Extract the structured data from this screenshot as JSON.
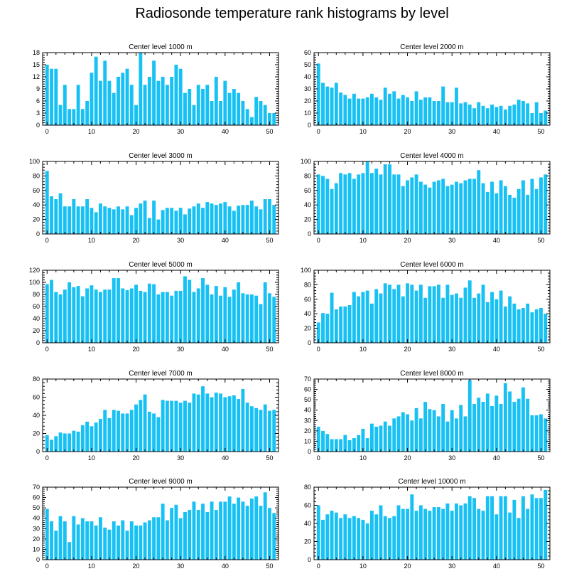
{
  "page_title": "Radiosonde temperature rank histograms by level",
  "colors": {
    "bar": "#18c1f4",
    "axis": "#000000",
    "background": "#ffffff"
  },
  "chart_data": [
    {
      "type": "bar",
      "title": "Center level 1000 m",
      "xlim": [
        -1,
        52
      ],
      "ylim": [
        0,
        18
      ],
      "xticks": [
        0,
        10,
        20,
        30,
        40,
        50
      ],
      "yticks": [
        0,
        3,
        6,
        9,
        12,
        15,
        18
      ],
      "x": [
        0,
        1,
        2,
        3,
        4,
        5,
        6,
        7,
        8,
        9,
        10,
        11,
        12,
        13,
        14,
        15,
        16,
        17,
        18,
        19,
        20,
        21,
        22,
        23,
        24,
        25,
        26,
        27,
        28,
        29,
        30,
        31,
        32,
        33,
        34,
        35,
        36,
        37,
        38,
        39,
        40,
        41,
        42,
        43,
        44,
        45,
        46,
        47,
        48,
        49,
        50,
        51
      ],
      "values": [
        15,
        14,
        14,
        5,
        10,
        4,
        4,
        10,
        4,
        6,
        13,
        17,
        11,
        16,
        11,
        8,
        12,
        13,
        14,
        10,
        5,
        18,
        10,
        12,
        16,
        11,
        12,
        10,
        12,
        15,
        14,
        8,
        9,
        5,
        10,
        9,
        10,
        6,
        12,
        6,
        11,
        8,
        9,
        8,
        6,
        4,
        2,
        7,
        6,
        5,
        3,
        3
      ]
    },
    {
      "type": "bar",
      "title": "Center level 2000 m",
      "xlim": [
        -1,
        52
      ],
      "ylim": [
        0,
        60
      ],
      "xticks": [
        0,
        10,
        20,
        30,
        40,
        50
      ],
      "yticks": [
        0,
        10,
        20,
        30,
        40,
        50,
        60
      ],
      "x": [
        0,
        1,
        2,
        3,
        4,
        5,
        6,
        7,
        8,
        9,
        10,
        11,
        12,
        13,
        14,
        15,
        16,
        17,
        18,
        19,
        20,
        21,
        22,
        23,
        24,
        25,
        26,
        27,
        28,
        29,
        30,
        31,
        32,
        33,
        34,
        35,
        36,
        37,
        38,
        39,
        40,
        41,
        42,
        43,
        44,
        45,
        46,
        47,
        48,
        49,
        50,
        51
      ],
      "values": [
        51,
        35,
        32,
        31,
        35,
        27,
        25,
        22,
        26,
        22,
        22,
        23,
        26,
        23,
        21,
        31,
        26,
        28,
        22,
        25,
        23,
        20,
        28,
        21,
        23,
        23,
        20,
        20,
        32,
        19,
        19,
        31,
        18,
        19,
        17,
        14,
        19,
        16,
        14,
        17,
        15,
        16,
        13,
        16,
        17,
        21,
        20,
        18,
        10,
        19,
        10,
        12
      ]
    },
    {
      "type": "bar",
      "title": "Center level 3000 m",
      "xlim": [
        -1,
        52
      ],
      "ylim": [
        0,
        100
      ],
      "xticks": [
        0,
        10,
        20,
        30,
        40,
        50
      ],
      "yticks": [
        0,
        20,
        40,
        60,
        80,
        100
      ],
      "x": [
        0,
        1,
        2,
        3,
        4,
        5,
        6,
        7,
        8,
        9,
        10,
        11,
        12,
        13,
        14,
        15,
        16,
        17,
        18,
        19,
        20,
        21,
        22,
        23,
        24,
        25,
        26,
        27,
        28,
        29,
        30,
        31,
        32,
        33,
        34,
        35,
        36,
        37,
        38,
        39,
        40,
        41,
        42,
        43,
        44,
        45,
        46,
        47,
        48,
        49,
        50,
        51
      ],
      "values": [
        87,
        52,
        48,
        56,
        38,
        38,
        48,
        38,
        38,
        48,
        36,
        30,
        42,
        38,
        36,
        34,
        38,
        34,
        38,
        26,
        36,
        42,
        46,
        22,
        46,
        20,
        33,
        36,
        36,
        32,
        36,
        27,
        35,
        38,
        42,
        36,
        44,
        42,
        40,
        42,
        44,
        38,
        32,
        39,
        40,
        40,
        46,
        38,
        34,
        48,
        48,
        40
      ]
    },
    {
      "type": "bar",
      "title": "Center level 4000 m",
      "xlim": [
        -1,
        52
      ],
      "ylim": [
        0,
        100
      ],
      "xticks": [
        0,
        10,
        20,
        30,
        40,
        50
      ],
      "yticks": [
        0,
        20,
        40,
        60,
        80,
        100
      ],
      "x": [
        0,
        1,
        2,
        3,
        4,
        5,
        6,
        7,
        8,
        9,
        10,
        11,
        12,
        13,
        14,
        15,
        16,
        17,
        18,
        19,
        20,
        21,
        22,
        23,
        24,
        25,
        26,
        27,
        28,
        29,
        30,
        31,
        32,
        33,
        34,
        35,
        36,
        37,
        38,
        39,
        40,
        41,
        42,
        43,
        44,
        45,
        46,
        47,
        48,
        49,
        50,
        51
      ],
      "values": [
        82,
        80,
        76,
        62,
        70,
        84,
        82,
        84,
        76,
        82,
        84,
        100,
        84,
        90,
        82,
        96,
        96,
        82,
        82,
        66,
        74,
        78,
        82,
        72,
        68,
        64,
        72,
        74,
        76,
        66,
        68,
        72,
        70,
        74,
        76,
        76,
        88,
        70,
        58,
        72,
        56,
        74,
        66,
        54,
        50,
        62,
        74,
        54,
        76,
        62,
        78,
        82
      ]
    },
    {
      "type": "bar",
      "title": "Center level 5000 m",
      "xlim": [
        -1,
        52
      ],
      "ylim": [
        0,
        120
      ],
      "xticks": [
        0,
        10,
        20,
        30,
        40,
        50
      ],
      "yticks": [
        0,
        20,
        40,
        60,
        80,
        100,
        120
      ],
      "x": [
        0,
        1,
        2,
        3,
        4,
        5,
        6,
        7,
        8,
        9,
        10,
        11,
        12,
        13,
        14,
        15,
        16,
        17,
        18,
        19,
        20,
        21,
        22,
        23,
        24,
        25,
        26,
        27,
        28,
        29,
        30,
        31,
        32,
        33,
        34,
        35,
        36,
        37,
        38,
        39,
        40,
        41,
        42,
        43,
        44,
        45,
        46,
        47,
        48,
        49,
        50,
        51
      ],
      "values": [
        97,
        104,
        84,
        80,
        88,
        100,
        92,
        94,
        77,
        90,
        95,
        88,
        84,
        88,
        88,
        107,
        107,
        90,
        87,
        90,
        96,
        86,
        84,
        98,
        97,
        80,
        84,
        84,
        78,
        86,
        86,
        110,
        104,
        84,
        90,
        107,
        96,
        80,
        94,
        78,
        92,
        76,
        88,
        100,
        82,
        80,
        80,
        78,
        64,
        100,
        82,
        76
      ]
    },
    {
      "type": "bar",
      "title": "Center level 6000 m",
      "xlim": [
        -1,
        52
      ],
      "ylim": [
        0,
        100
      ],
      "xticks": [
        0,
        10,
        20,
        30,
        40,
        50
      ],
      "yticks": [
        0,
        20,
        40,
        60,
        80,
        100
      ],
      "x": [
        0,
        1,
        2,
        3,
        4,
        5,
        6,
        7,
        8,
        9,
        10,
        11,
        12,
        13,
        14,
        15,
        16,
        17,
        18,
        19,
        20,
        21,
        22,
        23,
        24,
        25,
        26,
        27,
        28,
        29,
        30,
        31,
        32,
        33,
        34,
        35,
        36,
        37,
        38,
        39,
        40,
        41,
        42,
        43,
        44,
        45,
        46,
        47,
        48,
        49,
        50,
        51
      ],
      "values": [
        28,
        41,
        40,
        69,
        46,
        50,
        50,
        52,
        70,
        64,
        70,
        72,
        54,
        74,
        68,
        82,
        80,
        74,
        80,
        64,
        82,
        80,
        72,
        80,
        62,
        78,
        78,
        80,
        62,
        80,
        66,
        68,
        62,
        76,
        86,
        62,
        68,
        80,
        56,
        70,
        60,
        72,
        50,
        64,
        54,
        46,
        48,
        54,
        42,
        46,
        48,
        40
      ]
    },
    {
      "type": "bar",
      "title": "Center level 7000 m",
      "xlim": [
        -1,
        52
      ],
      "ylim": [
        0,
        80
      ],
      "xticks": [
        0,
        10,
        20,
        30,
        40,
        50
      ],
      "yticks": [
        0,
        20,
        40,
        60,
        80
      ],
      "x": [
        0,
        1,
        2,
        3,
        4,
        5,
        6,
        7,
        8,
        9,
        10,
        11,
        12,
        13,
        14,
        15,
        16,
        17,
        18,
        19,
        20,
        21,
        22,
        23,
        24,
        25,
        26,
        27,
        28,
        29,
        30,
        31,
        32,
        33,
        34,
        35,
        36,
        37,
        38,
        39,
        40,
        41,
        42,
        43,
        44,
        45,
        46,
        47,
        48,
        49,
        50,
        51
      ],
      "values": [
        18,
        13,
        17,
        21,
        20,
        20,
        23,
        22,
        29,
        33,
        28,
        32,
        36,
        46,
        37,
        46,
        45,
        42,
        42,
        46,
        52,
        57,
        63,
        44,
        42,
        38,
        57,
        56,
        56,
        56,
        54,
        56,
        54,
        64,
        63,
        72,
        64,
        60,
        65,
        64,
        60,
        61,
        62,
        58,
        69,
        54,
        50,
        48,
        46,
        52,
        45,
        46
      ]
    },
    {
      "type": "bar",
      "title": "Center level 8000 m",
      "xlim": [
        -1,
        52
      ],
      "ylim": [
        0,
        70
      ],
      "xticks": [
        0,
        10,
        20,
        30,
        40,
        50
      ],
      "yticks": [
        0,
        10,
        20,
        30,
        40,
        50,
        60,
        70
      ],
      "x": [
        0,
        1,
        2,
        3,
        4,
        5,
        6,
        7,
        8,
        9,
        10,
        11,
        12,
        13,
        14,
        15,
        16,
        17,
        18,
        19,
        20,
        21,
        22,
        23,
        24,
        25,
        26,
        27,
        28,
        29,
        30,
        31,
        32,
        33,
        34,
        35,
        36,
        37,
        38,
        39,
        40,
        41,
        42,
        43,
        44,
        45,
        46,
        47,
        48,
        49,
        50,
        51
      ],
      "values": [
        24,
        20,
        17,
        12,
        12,
        12,
        16,
        11,
        13,
        16,
        22,
        13,
        27,
        24,
        25,
        29,
        25,
        32,
        34,
        38,
        36,
        30,
        42,
        32,
        48,
        41,
        40,
        34,
        46,
        29,
        40,
        32,
        45,
        34,
        69,
        46,
        52,
        48,
        56,
        44,
        54,
        46,
        66,
        58,
        48,
        51,
        62,
        51,
        35,
        35,
        36,
        32
      ]
    },
    {
      "type": "bar",
      "title": "Center level 9000 m",
      "xlim": [
        -1,
        52
      ],
      "ylim": [
        0,
        70
      ],
      "xticks": [
        0,
        10,
        20,
        30,
        40,
        50
      ],
      "yticks": [
        0,
        10,
        20,
        30,
        40,
        50,
        60,
        70
      ],
      "x": [
        0,
        1,
        2,
        3,
        4,
        5,
        6,
        7,
        8,
        9,
        10,
        11,
        12,
        13,
        14,
        15,
        16,
        17,
        18,
        19,
        20,
        21,
        22,
        23,
        24,
        25,
        26,
        27,
        28,
        29,
        30,
        31,
        32,
        33,
        34,
        35,
        36,
        37,
        38,
        39,
        40,
        41,
        42,
        43,
        44,
        45,
        46,
        47,
        48,
        49,
        50,
        51
      ],
      "values": [
        49,
        37,
        28,
        42,
        37,
        17,
        42,
        34,
        40,
        37,
        37,
        33,
        41,
        31,
        29,
        37,
        33,
        38,
        28,
        37,
        33,
        33,
        36,
        38,
        41,
        41,
        54,
        38,
        50,
        53,
        40,
        46,
        48,
        56,
        48,
        54,
        46,
        56,
        48,
        56,
        56,
        61,
        54,
        60,
        56,
        52,
        59,
        61,
        52,
        65,
        50,
        45
      ]
    },
    {
      "type": "bar",
      "title": "Center level 10000 m",
      "xlim": [
        -1,
        52
      ],
      "ylim": [
        0,
        80
      ],
      "xticks": [
        0,
        10,
        20,
        30,
        40,
        50
      ],
      "yticks": [
        0,
        20,
        40,
        60,
        80
      ],
      "x": [
        0,
        1,
        2,
        3,
        4,
        5,
        6,
        7,
        8,
        9,
        10,
        11,
        12,
        13,
        14,
        15,
        16,
        17,
        18,
        19,
        20,
        21,
        22,
        23,
        24,
        25,
        26,
        27,
        28,
        29,
        30,
        31,
        32,
        33,
        34,
        35,
        36,
        37,
        38,
        39,
        40,
        41,
        42,
        43,
        44,
        45,
        46,
        47,
        48,
        49,
        50,
        51
      ],
      "values": [
        60,
        44,
        50,
        54,
        52,
        46,
        50,
        46,
        48,
        46,
        44,
        40,
        54,
        50,
        60,
        48,
        46,
        48,
        60,
        56,
        56,
        72,
        54,
        60,
        56,
        54,
        58,
        58,
        56,
        62,
        54,
        62,
        60,
        62,
        70,
        68,
        56,
        54,
        70,
        70,
        50,
        70,
        70,
        52,
        66,
        46,
        70,
        56,
        72,
        68,
        68,
        77
      ]
    }
  ]
}
